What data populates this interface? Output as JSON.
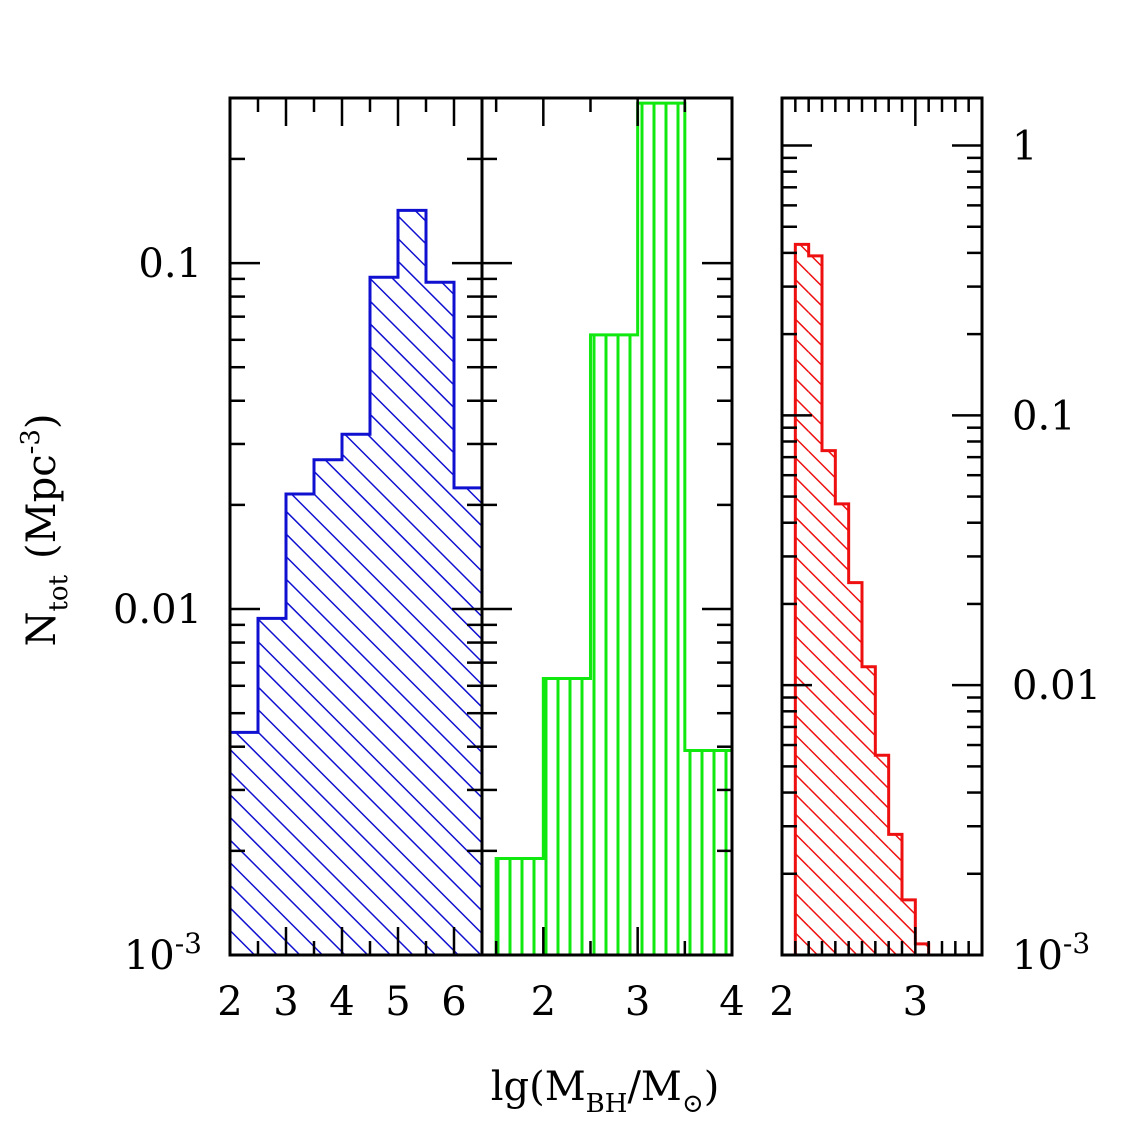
{
  "chart_data": [
    {
      "type": "bar",
      "panel": "left",
      "color": "#1010d0",
      "hatch": "diagonal",
      "xlim": [
        2,
        6.5
      ],
      "ylim": [
        0.001,
        0.3
      ],
      "yscale": "log",
      "xticks": [
        "2",
        "3",
        "4",
        "5",
        "6"
      ],
      "yticklabels": [
        "0.1",
        "0.01",
        "10^-3"
      ],
      "bins": [
        {
          "x0": 2.0,
          "x1": 2.5,
          "value": 0.0044
        },
        {
          "x0": 2.5,
          "x1": 3.0,
          "value": 0.0094
        },
        {
          "x0": 3.0,
          "x1": 3.5,
          "value": 0.0215
        },
        {
          "x0": 3.5,
          "x1": 4.0,
          "value": 0.027
        },
        {
          "x0": 4.0,
          "x1": 4.5,
          "value": 0.032
        },
        {
          "x0": 4.5,
          "x1": 5.0,
          "value": 0.091
        },
        {
          "x0": 5.0,
          "x1": 5.5,
          "value": 0.142
        },
        {
          "x0": 5.5,
          "x1": 6.0,
          "value": 0.088
        },
        {
          "x0": 6.0,
          "x1": 6.5,
          "value": 0.0224
        }
      ]
    },
    {
      "type": "bar",
      "panel": "middle",
      "color": "#10e810",
      "hatch": "vertical",
      "xlim": [
        1.35,
        4
      ],
      "ylim": [
        0.001,
        0.3
      ],
      "yscale": "log",
      "xticks": [
        "2",
        "3",
        "4"
      ],
      "bins": [
        {
          "x0": 1.5,
          "x1": 2.0,
          "value": 0.0019
        },
        {
          "x0": 2.0,
          "x1": 2.5,
          "value": 0.0063
        },
        {
          "x0": 2.5,
          "x1": 3.0,
          "value": 0.062
        },
        {
          "x0": 3.0,
          "x1": 3.5,
          "value": 0.29
        },
        {
          "x0": 3.5,
          "x1": 4.0,
          "value": 0.0039
        }
      ]
    },
    {
      "type": "bar",
      "panel": "right",
      "color": "#ee1010",
      "hatch": "diagonal",
      "xlim": [
        2,
        3.5
      ],
      "ylim": [
        0.001,
        1.5
      ],
      "yscale": "log",
      "xticks": [
        "2",
        "3"
      ],
      "yticklabels": [
        "1",
        "0.1",
        "0.01",
        "10^-3"
      ],
      "bins": [
        {
          "x0": 2.1,
          "x1": 2.2,
          "value": 0.43
        },
        {
          "x0": 2.2,
          "x1": 2.3,
          "value": 0.39
        },
        {
          "x0": 2.3,
          "x1": 2.4,
          "value": 0.074
        },
        {
          "x0": 2.4,
          "x1": 2.5,
          "value": 0.047
        },
        {
          "x0": 2.5,
          "x1": 2.6,
          "value": 0.024
        },
        {
          "x0": 2.6,
          "x1": 2.7,
          "value": 0.0117
        },
        {
          "x0": 2.7,
          "x1": 2.8,
          "value": 0.0055
        },
        {
          "x0": 2.8,
          "x1": 2.9,
          "value": 0.0028
        },
        {
          "x0": 2.9,
          "x1": 3.0,
          "value": 0.0016
        },
        {
          "x0": 3.0,
          "x1": 3.1,
          "value": 0.0011
        }
      ]
    }
  ],
  "labels": {
    "ylabel_main": "N",
    "ylabel_sub": "tot",
    "ylabel_unit": "(Mpc",
    "ylabel_exp": "-3",
    "ylabel_close": ")",
    "xlabel_pre": "lg(M",
    "xlabel_sub1": "BH",
    "xlabel_mid": "/M",
    "xlabel_sub2": "⊙",
    "xlabel_close": ")",
    "tick_exp_base": "10",
    "tick_exp_power": "-3"
  }
}
